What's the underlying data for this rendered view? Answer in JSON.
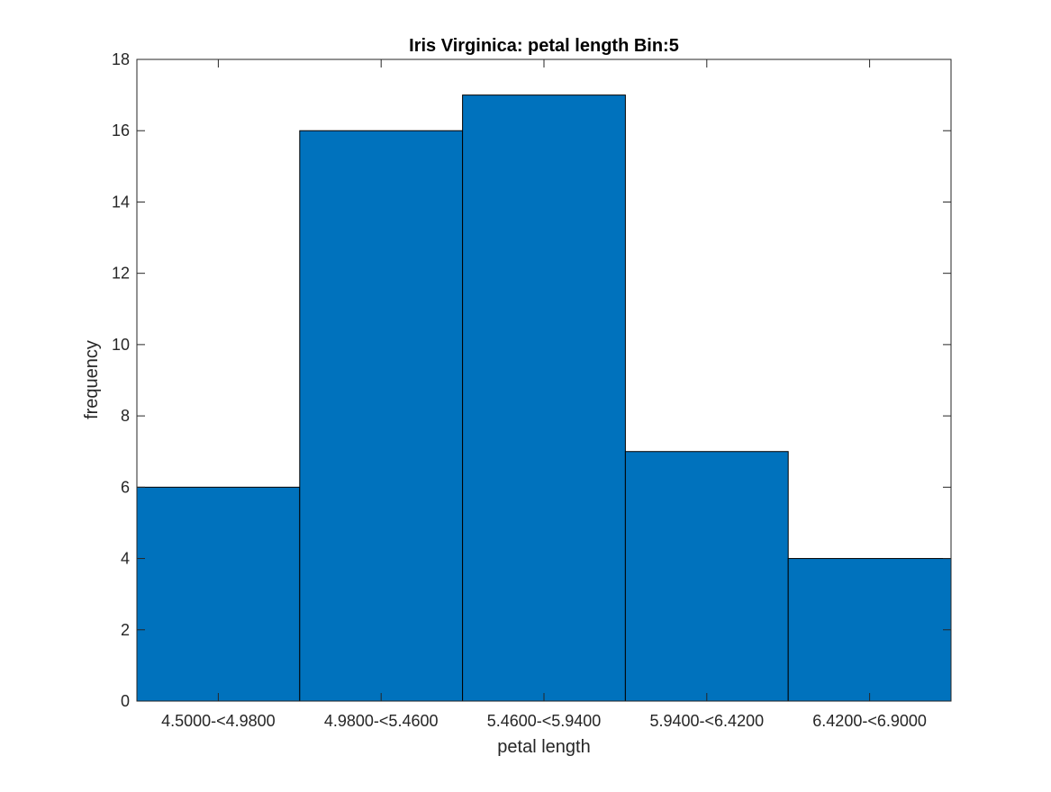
{
  "chart_data": {
    "type": "bar",
    "title": "Iris Virginica: petal length Bin:5",
    "xlabel": "petal length",
    "ylabel": "frequency",
    "categories": [
      "4.5000-<4.9800",
      "4.9800-<5.4600",
      "5.4600-<5.9400",
      "5.9400-<6.4200",
      "6.4200-<6.9000"
    ],
    "values": [
      6,
      16,
      17,
      7,
      4
    ],
    "ylim": [
      0,
      18
    ],
    "yticks": [
      "0",
      "2",
      "4",
      "6",
      "8",
      "10",
      "12",
      "14",
      "16",
      "18"
    ],
    "grid": false,
    "bar_color": "#0072BD",
    "edge_color": "#000000"
  }
}
